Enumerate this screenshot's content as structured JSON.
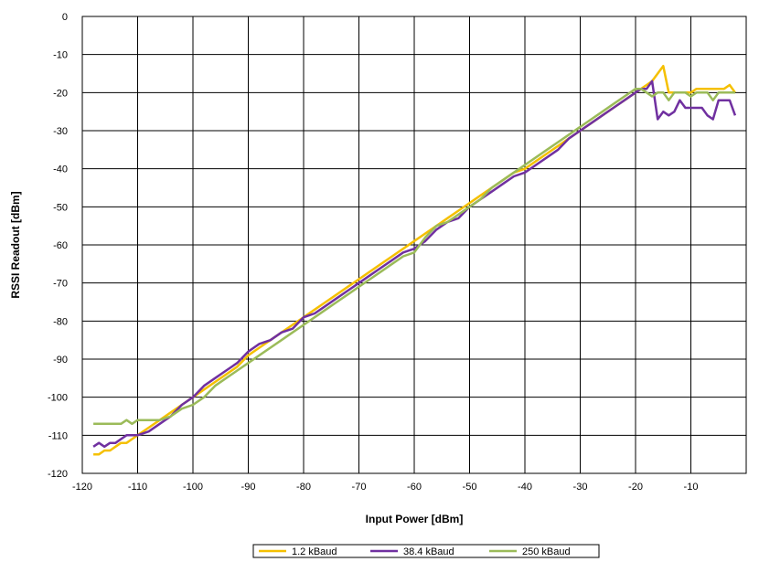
{
  "chart_data": {
    "type": "line",
    "title": "",
    "xlabel": "Input Power [dBm]",
    "ylabel": "RSSI Readout [dBm]",
    "xlim": [
      -120,
      0
    ],
    "ylim": [
      -120,
      0
    ],
    "x_ticks": [
      -120,
      -110,
      -100,
      -90,
      -80,
      -70,
      -60,
      -50,
      -40,
      -30,
      -20,
      -10
    ],
    "y_ticks": [
      0,
      -10,
      -20,
      -30,
      -40,
      -50,
      -60,
      -70,
      -80,
      -90,
      -100,
      -110,
      -120
    ],
    "grid": true,
    "legend_position": "bottom-center",
    "series": [
      {
        "name": "1.2 kBaud",
        "color": "#F5C000",
        "points": [
          [
            -118,
            -115
          ],
          [
            -117,
            -115
          ],
          [
            -116,
            -114
          ],
          [
            -115,
            -114
          ],
          [
            -114,
            -113
          ],
          [
            -113,
            -112
          ],
          [
            -112,
            -112
          ],
          [
            -111,
            -111
          ],
          [
            -110,
            -110
          ],
          [
            -108,
            -108
          ],
          [
            -106,
            -106
          ],
          [
            -104,
            -104
          ],
          [
            -102,
            -102
          ],
          [
            -100,
            -100
          ],
          [
            -98,
            -98
          ],
          [
            -96,
            -96
          ],
          [
            -94,
            -94
          ],
          [
            -92,
            -92
          ],
          [
            -90,
            -89
          ],
          [
            -88,
            -87
          ],
          [
            -86,
            -85
          ],
          [
            -84,
            -83
          ],
          [
            -82,
            -81
          ],
          [
            -80,
            -79
          ],
          [
            -78,
            -77
          ],
          [
            -76,
            -75
          ],
          [
            -74,
            -73
          ],
          [
            -72,
            -71
          ],
          [
            -70,
            -69
          ],
          [
            -68,
            -67
          ],
          [
            -66,
            -65
          ],
          [
            -64,
            -63
          ],
          [
            -62,
            -61
          ],
          [
            -60,
            -59
          ],
          [
            -58,
            -57
          ],
          [
            -56,
            -55
          ],
          [
            -54,
            -53
          ],
          [
            -52,
            -51
          ],
          [
            -50,
            -49
          ],
          [
            -48,
            -47
          ],
          [
            -46,
            -45
          ],
          [
            -44,
            -43
          ],
          [
            -42,
            -41
          ],
          [
            -40,
            -40
          ],
          [
            -38,
            -38
          ],
          [
            -36,
            -36
          ],
          [
            -34,
            -34
          ],
          [
            -32,
            -32
          ],
          [
            -30,
            -30
          ],
          [
            -28,
            -28
          ],
          [
            -26,
            -26
          ],
          [
            -24,
            -24
          ],
          [
            -22,
            -22
          ],
          [
            -20,
            -20
          ],
          [
            -19,
            -19
          ],
          [
            -18,
            -18
          ],
          [
            -17,
            -17
          ],
          [
            -16,
            -15
          ],
          [
            -15,
            -13
          ],
          [
            -14,
            -20
          ],
          [
            -13,
            -20
          ],
          [
            -12,
            -20
          ],
          [
            -11,
            -20
          ],
          [
            -10,
            -20
          ],
          [
            -9,
            -19
          ],
          [
            -8,
            -19
          ],
          [
            -7,
            -19
          ],
          [
            -6,
            -19
          ],
          [
            -5,
            -19
          ],
          [
            -4,
            -19
          ],
          [
            -3,
            -18
          ],
          [
            -2,
            -20
          ]
        ]
      },
      {
        "name": "38.4 kBaud",
        "color": "#7030A0",
        "points": [
          [
            -118,
            -113
          ],
          [
            -117,
            -112
          ],
          [
            -116,
            -113
          ],
          [
            -115,
            -112
          ],
          [
            -114,
            -112
          ],
          [
            -113,
            -111
          ],
          [
            -112,
            -110
          ],
          [
            -111,
            -110
          ],
          [
            -110,
            -110
          ],
          [
            -108,
            -109
          ],
          [
            -106,
            -107
          ],
          [
            -104,
            -105
          ],
          [
            -102,
            -102
          ],
          [
            -100,
            -100
          ],
          [
            -98,
            -97
          ],
          [
            -96,
            -95
          ],
          [
            -94,
            -93
          ],
          [
            -92,
            -91
          ],
          [
            -90,
            -88
          ],
          [
            -88,
            -86
          ],
          [
            -86,
            -85
          ],
          [
            -84,
            -83
          ],
          [
            -82,
            -82
          ],
          [
            -80,
            -79
          ],
          [
            -78,
            -78
          ],
          [
            -76,
            -76
          ],
          [
            -74,
            -74
          ],
          [
            -72,
            -72
          ],
          [
            -70,
            -70
          ],
          [
            -68,
            -68
          ],
          [
            -66,
            -66
          ],
          [
            -64,
            -64
          ],
          [
            -62,
            -62
          ],
          [
            -60,
            -61
          ],
          [
            -58,
            -59
          ],
          [
            -56,
            -56
          ],
          [
            -54,
            -54
          ],
          [
            -52,
            -53
          ],
          [
            -50,
            -50
          ],
          [
            -48,
            -48
          ],
          [
            -46,
            -46
          ],
          [
            -44,
            -44
          ],
          [
            -42,
            -42
          ],
          [
            -40,
            -41
          ],
          [
            -38,
            -39
          ],
          [
            -36,
            -37
          ],
          [
            -34,
            -35
          ],
          [
            -32,
            -32
          ],
          [
            -30,
            -30
          ],
          [
            -28,
            -28
          ],
          [
            -26,
            -26
          ],
          [
            -24,
            -24
          ],
          [
            -22,
            -22
          ],
          [
            -20,
            -20
          ],
          [
            -19,
            -19
          ],
          [
            -18,
            -19
          ],
          [
            -17,
            -17
          ],
          [
            -16,
            -27
          ],
          [
            -15,
            -25
          ],
          [
            -14,
            -26
          ],
          [
            -13,
            -25
          ],
          [
            -12,
            -22
          ],
          [
            -11,
            -24
          ],
          [
            -10,
            -24
          ],
          [
            -9,
            -24
          ],
          [
            -8,
            -24
          ],
          [
            -7,
            -26
          ],
          [
            -6,
            -27
          ],
          [
            -5,
            -22
          ],
          [
            -4,
            -22
          ],
          [
            -3,
            -22
          ],
          [
            -2,
            -26
          ]
        ]
      },
      {
        "name": "250 kBaud",
        "color": "#9BBB59",
        "points": [
          [
            -118,
            -107
          ],
          [
            -117,
            -107
          ],
          [
            -116,
            -107
          ],
          [
            -115,
            -107
          ],
          [
            -114,
            -107
          ],
          [
            -113,
            -107
          ],
          [
            -112,
            -106
          ],
          [
            -111,
            -107
          ],
          [
            -110,
            -106
          ],
          [
            -108,
            -106
          ],
          [
            -106,
            -106
          ],
          [
            -104,
            -105
          ],
          [
            -102,
            -103
          ],
          [
            -100,
            -102
          ],
          [
            -98,
            -100
          ],
          [
            -96,
            -97
          ],
          [
            -94,
            -95
          ],
          [
            -92,
            -93
          ],
          [
            -90,
            -91
          ],
          [
            -88,
            -89
          ],
          [
            -86,
            -87
          ],
          [
            -84,
            -85
          ],
          [
            -82,
            -83
          ],
          [
            -80,
            -81
          ],
          [
            -78,
            -79
          ],
          [
            -76,
            -77
          ],
          [
            -74,
            -75
          ],
          [
            -72,
            -73
          ],
          [
            -70,
            -71
          ],
          [
            -68,
            -69
          ],
          [
            -66,
            -67
          ],
          [
            -64,
            -65
          ],
          [
            -62,
            -63
          ],
          [
            -60,
            -62
          ],
          [
            -58,
            -58
          ],
          [
            -56,
            -55
          ],
          [
            -54,
            -54
          ],
          [
            -52,
            -52
          ],
          [
            -50,
            -50
          ],
          [
            -48,
            -48
          ],
          [
            -46,
            -45
          ],
          [
            -44,
            -43
          ],
          [
            -42,
            -41
          ],
          [
            -40,
            -39
          ],
          [
            -38,
            -37
          ],
          [
            -36,
            -35
          ],
          [
            -34,
            -33
          ],
          [
            -32,
            -31
          ],
          [
            -30,
            -29
          ],
          [
            -28,
            -27
          ],
          [
            -26,
            -25
          ],
          [
            -24,
            -23
          ],
          [
            -22,
            -21
          ],
          [
            -20,
            -19
          ],
          [
            -19,
            -19
          ],
          [
            -18,
            -20
          ],
          [
            -17,
            -21
          ],
          [
            -16,
            -20
          ],
          [
            -15,
            -20
          ],
          [
            -14,
            -22
          ],
          [
            -13,
            -20
          ],
          [
            -12,
            -20
          ],
          [
            -11,
            -20
          ],
          [
            -10,
            -21
          ],
          [
            -9,
            -20
          ],
          [
            -8,
            -20
          ],
          [
            -7,
            -20
          ],
          [
            -6,
            -22
          ],
          [
            -5,
            -20
          ],
          [
            -4,
            -20
          ],
          [
            -3,
            -20
          ],
          [
            -2,
            -20
          ]
        ]
      }
    ]
  }
}
